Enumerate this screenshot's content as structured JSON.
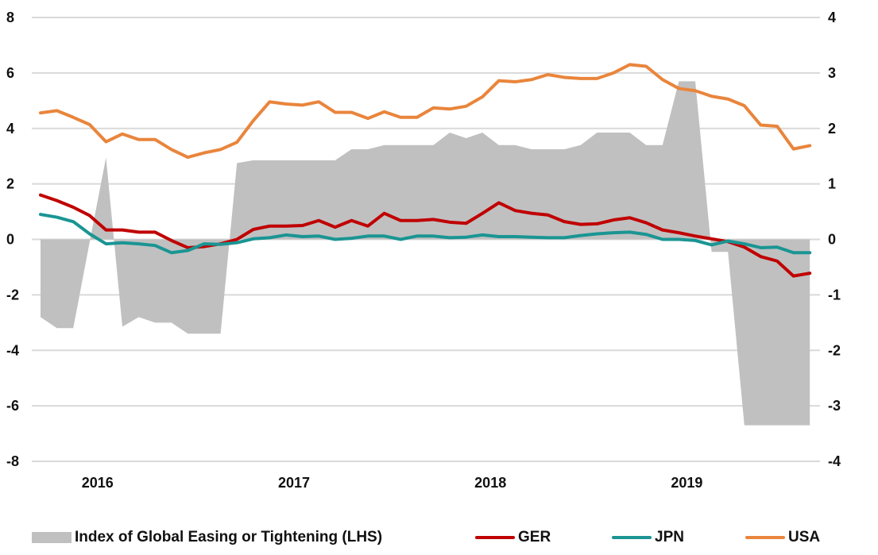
{
  "chart_data": {
    "type": "area",
    "x_tick_labels": [
      "2016",
      "2017",
      "2018",
      "2019"
    ],
    "left_axis": {
      "ticks": [
        "8",
        "6",
        "4",
        "2",
        "0",
        "-2",
        "-4",
        "-6",
        "-8"
      ],
      "range": [
        -8,
        8
      ]
    },
    "right_axis": {
      "ticks": [
        "4",
        "3",
        "2",
        "1",
        "0",
        "-1",
        "-2",
        "-3",
        "-4"
      ],
      "range": [
        -4,
        4
      ]
    },
    "grid": true,
    "legend_position": "bottom",
    "x": [
      "2015-10",
      "2015-11",
      "2015-12",
      "2016-01",
      "2016-02",
      "2016-03",
      "2016-04",
      "2016-05",
      "2016-06",
      "2016-07",
      "2016-08",
      "2016-09",
      "2016-10",
      "2016-11",
      "2016-12",
      "2017-01",
      "2017-02",
      "2017-03",
      "2017-04",
      "2017-05",
      "2017-06",
      "2017-07",
      "2017-08",
      "2017-09",
      "2017-10",
      "2017-11",
      "2017-12",
      "2018-01",
      "2018-02",
      "2018-03",
      "2018-04",
      "2018-05",
      "2018-06",
      "2018-07",
      "2018-08",
      "2018-09",
      "2018-10",
      "2018-11",
      "2018-12",
      "2019-01",
      "2019-02",
      "2019-03",
      "2019-04",
      "2019-05",
      "2019-06",
      "2019-07",
      "2019-08",
      "2019-09"
    ],
    "series": [
      {
        "name": "Index of Global Easing or Tightening (LHS)",
        "axis": "left",
        "kind": "area",
        "color": "#c0c0c0",
        "values": [
          -2.8,
          -3.2,
          -3.2,
          -0.1,
          2.95,
          -3.15,
          -2.8,
          -3.0,
          -3.0,
          -3.4,
          -3.4,
          -3.4,
          2.75,
          2.85,
          2.85,
          2.85,
          2.85,
          2.85,
          2.85,
          3.25,
          3.25,
          3.4,
          3.4,
          3.4,
          3.4,
          3.85,
          3.65,
          3.85,
          3.4,
          3.4,
          3.25,
          3.25,
          3.25,
          3.4,
          3.85,
          3.85,
          3.85,
          3.4,
          3.4,
          5.7,
          5.7,
          -0.45,
          -0.45,
          -6.7,
          -6.7,
          -6.7,
          -6.7,
          -6.7
        ]
      },
      {
        "name": "GER",
        "axis": "right",
        "kind": "line",
        "color": "#c00000",
        "values": [
          0.8,
          0.7,
          0.58,
          0.43,
          0.17,
          0.17,
          0.13,
          0.13,
          -0.02,
          -0.15,
          -0.13,
          -0.08,
          0.0,
          0.18,
          0.24,
          0.24,
          0.25,
          0.34,
          0.22,
          0.34,
          0.24,
          0.47,
          0.34,
          0.34,
          0.36,
          0.31,
          0.29,
          0.47,
          0.66,
          0.52,
          0.47,
          0.44,
          0.32,
          0.27,
          0.28,
          0.35,
          0.39,
          0.3,
          0.17,
          0.12,
          0.06,
          0.01,
          -0.04,
          -0.14,
          -0.31,
          -0.39,
          -0.66,
          -0.61
        ]
      },
      {
        "name": "JPN",
        "axis": "right",
        "kind": "line",
        "color": "#1a9593",
        "values": [
          0.45,
          0.4,
          0.32,
          0.1,
          -0.08,
          -0.06,
          -0.08,
          -0.11,
          -0.24,
          -0.2,
          -0.08,
          -0.09,
          -0.06,
          0.01,
          0.03,
          0.08,
          0.05,
          0.06,
          0.0,
          0.02,
          0.06,
          0.06,
          0.0,
          0.06,
          0.06,
          0.03,
          0.04,
          0.08,
          0.05,
          0.05,
          0.04,
          0.03,
          0.03,
          0.07,
          0.1,
          0.12,
          0.13,
          0.09,
          0.0,
          0.0,
          -0.02,
          -0.1,
          -0.03,
          -0.08,
          -0.15,
          -0.14,
          -0.24,
          -0.24
        ]
      },
      {
        "name": "USA",
        "axis": "right",
        "kind": "line",
        "color": "#e9853c",
        "values": [
          2.28,
          2.32,
          2.2,
          2.07,
          1.76,
          1.9,
          1.8,
          1.8,
          1.62,
          1.48,
          1.56,
          1.62,
          1.75,
          2.14,
          2.48,
          2.44,
          2.42,
          2.48,
          2.29,
          2.29,
          2.18,
          2.3,
          2.2,
          2.2,
          2.37,
          2.35,
          2.4,
          2.57,
          2.86,
          2.84,
          2.88,
          2.97,
          2.92,
          2.9,
          2.9,
          3.0,
          3.15,
          3.12,
          2.88,
          2.72,
          2.68,
          2.58,
          2.53,
          2.41,
          2.06,
          2.04,
          1.63,
          1.69
        ]
      }
    ]
  }
}
